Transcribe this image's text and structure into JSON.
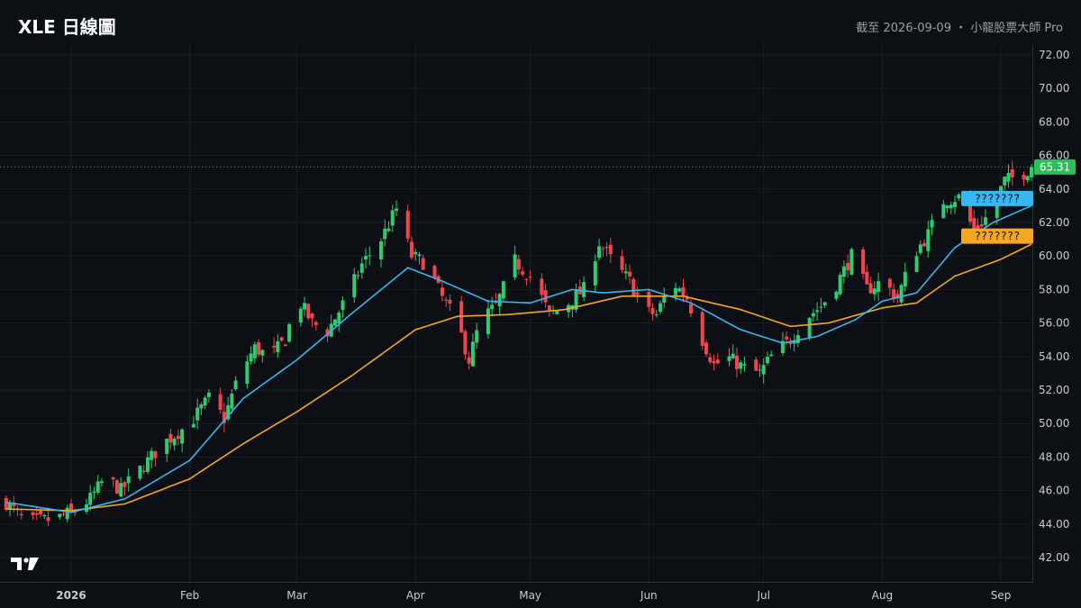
{
  "header": {
    "title": "XLE 日線圖",
    "asof_label": "截至 2026-09-09 ・ 小龍股票大師 Pro"
  },
  "colors": {
    "background": "#0c0f14",
    "up": "#2ecc71",
    "down": "#f0454f",
    "ma_fast": "#38b6f0",
    "ma_slow": "#f5a623",
    "last_price": "#2bbf5a"
  },
  "chart_data": {
    "type": "candlestick",
    "y_ticks": [
      "72.00",
      "70.00",
      "68.00",
      "66.00",
      "64.00",
      "62.00",
      "60.00",
      "58.00",
      "56.00",
      "54.00",
      "52.00",
      "50.00",
      "48.00",
      "46.00",
      "44.00",
      "42.00"
    ],
    "ylim": [
      41,
      73
    ],
    "x_ticks": [
      {
        "label": "2026",
        "date": "2026-01-01",
        "bold": true
      },
      {
        "label": "Feb",
        "date": "2026-02-01"
      },
      {
        "label": "Mar",
        "date": "2026-03-01"
      },
      {
        "label": "Apr",
        "date": "2026-04-01"
      },
      {
        "label": "May",
        "date": "2026-05-01"
      },
      {
        "label": "Jun",
        "date": "2026-06-01"
      },
      {
        "label": "Jul",
        "date": "2026-07-01"
      },
      {
        "label": "Aug",
        "date": "2026-08-01"
      },
      {
        "label": "Sep",
        "date": "2026-09-01"
      }
    ],
    "last_price": "65.31",
    "ma_fast_label": "???????",
    "ma_slow_label": "???????",
    "close_anchors": [
      [
        "2025-12-15",
        45.3
      ],
      [
        "2025-12-20",
        44.1
      ],
      [
        "2025-12-28",
        44.3
      ],
      [
        "2026-01-02",
        44.8
      ],
      [
        "2026-01-06",
        45.5
      ],
      [
        "2026-01-10",
        46.8
      ],
      [
        "2026-01-14",
        46.0
      ],
      [
        "2026-01-20",
        47.5
      ],
      [
        "2026-01-25",
        48.8
      ],
      [
        "2026-02-01",
        50.0
      ],
      [
        "2026-02-06",
        51.5
      ],
      [
        "2026-02-10",
        50.3
      ],
      [
        "2026-02-14",
        53.0
      ],
      [
        "2026-02-18",
        54.5
      ],
      [
        "2026-02-22",
        54.0
      ],
      [
        "2026-02-26",
        55.0
      ],
      [
        "2026-03-01",
        57.5
      ],
      [
        "2026-03-05",
        56.0
      ],
      [
        "2026-03-09",
        55.5
      ],
      [
        "2026-03-14",
        57.5
      ],
      [
        "2026-03-18",
        59.5
      ],
      [
        "2026-03-23",
        61.0
      ],
      [
        "2026-03-27",
        62.8
      ],
      [
        "2026-03-31",
        60.0
      ],
      [
        "2026-04-04",
        59.5
      ],
      [
        "2026-04-08",
        57.5
      ],
      [
        "2026-04-12",
        56.0
      ],
      [
        "2026-04-15",
        53.8
      ],
      [
        "2026-04-18",
        56.2
      ],
      [
        "2026-04-22",
        57.0
      ],
      [
        "2026-04-27",
        59.7
      ],
      [
        "2026-05-02",
        58.5
      ],
      [
        "2026-05-06",
        56.5
      ],
      [
        "2026-05-10",
        57.0
      ],
      [
        "2026-05-15",
        58.0
      ],
      [
        "2026-05-19",
        60.8
      ],
      [
        "2026-05-23",
        59.5
      ],
      [
        "2026-05-27",
        58.5
      ],
      [
        "2026-05-31",
        56.7
      ],
      [
        "2026-06-03",
        56.5
      ],
      [
        "2026-06-07",
        58.5
      ],
      [
        "2026-06-11",
        57.5
      ],
      [
        "2026-06-15",
        55.0
      ],
      [
        "2026-06-18",
        53.5
      ],
      [
        "2026-06-22",
        53.9
      ],
      [
        "2026-06-26",
        53.3
      ],
      [
        "2026-06-30",
        53.0
      ],
      [
        "2026-07-03",
        54.0
      ],
      [
        "2026-07-08",
        55.0
      ],
      [
        "2026-07-12",
        56.3
      ],
      [
        "2026-07-16",
        57.0
      ],
      [
        "2026-07-20",
        58.3
      ],
      [
        "2026-07-24",
        60.0
      ],
      [
        "2026-07-28",
        58.0
      ],
      [
        "2026-08-01",
        58.5
      ],
      [
        "2026-08-05",
        57.5
      ],
      [
        "2026-08-09",
        60.0
      ],
      [
        "2026-08-13",
        61.3
      ],
      [
        "2026-08-17",
        63.3
      ],
      [
        "2026-08-21",
        63.5
      ],
      [
        "2026-08-25",
        61.5
      ],
      [
        "2026-08-29",
        62.5
      ],
      [
        "2026-09-02",
        64.5
      ],
      [
        "2026-09-06",
        64.8
      ],
      [
        "2026-09-09",
        65.31
      ]
    ],
    "ma_fast_anchors": [
      [
        "2025-12-15",
        45.3
      ],
      [
        "2026-01-01",
        44.7
      ],
      [
        "2026-01-15",
        45.5
      ],
      [
        "2026-02-01",
        47.8
      ],
      [
        "2026-02-15",
        51.5
      ],
      [
        "2026-03-01",
        53.8
      ],
      [
        "2026-03-15",
        56.5
      ],
      [
        "2026-03-30",
        59.3
      ],
      [
        "2026-04-08",
        58.5
      ],
      [
        "2026-04-20",
        57.3
      ],
      [
        "2026-05-01",
        57.2
      ],
      [
        "2026-05-12",
        58.0
      ],
      [
        "2026-05-20",
        57.8
      ],
      [
        "2026-06-01",
        58.0
      ],
      [
        "2026-06-12",
        57.2
      ],
      [
        "2026-06-25",
        55.6
      ],
      [
        "2026-07-06",
        54.8
      ],
      [
        "2026-07-15",
        55.2
      ],
      [
        "2026-07-25",
        56.2
      ],
      [
        "2026-08-01",
        57.3
      ],
      [
        "2026-08-10",
        57.8
      ],
      [
        "2026-08-20",
        60.5
      ],
      [
        "2026-08-30",
        62.0
      ],
      [
        "2026-09-09",
        63.0
      ]
    ],
    "ma_slow_anchors": [
      [
        "2025-12-15",
        44.9
      ],
      [
        "2026-01-01",
        44.8
      ],
      [
        "2026-01-15",
        45.2
      ],
      [
        "2026-02-01",
        46.7
      ],
      [
        "2026-02-15",
        48.8
      ],
      [
        "2026-03-01",
        50.7
      ],
      [
        "2026-03-15",
        52.8
      ],
      [
        "2026-04-01",
        55.6
      ],
      [
        "2026-04-12",
        56.4
      ],
      [
        "2026-04-25",
        56.5
      ],
      [
        "2026-05-10",
        56.8
      ],
      [
        "2026-05-25",
        57.6
      ],
      [
        "2026-06-10",
        57.6
      ],
      [
        "2026-06-25",
        56.8
      ],
      [
        "2026-07-08",
        55.8
      ],
      [
        "2026-07-18",
        56.0
      ],
      [
        "2026-08-01",
        56.9
      ],
      [
        "2026-08-10",
        57.2
      ],
      [
        "2026-08-20",
        58.8
      ],
      [
        "2026-09-01",
        59.8
      ],
      [
        "2026-09-09",
        60.7
      ]
    ]
  }
}
